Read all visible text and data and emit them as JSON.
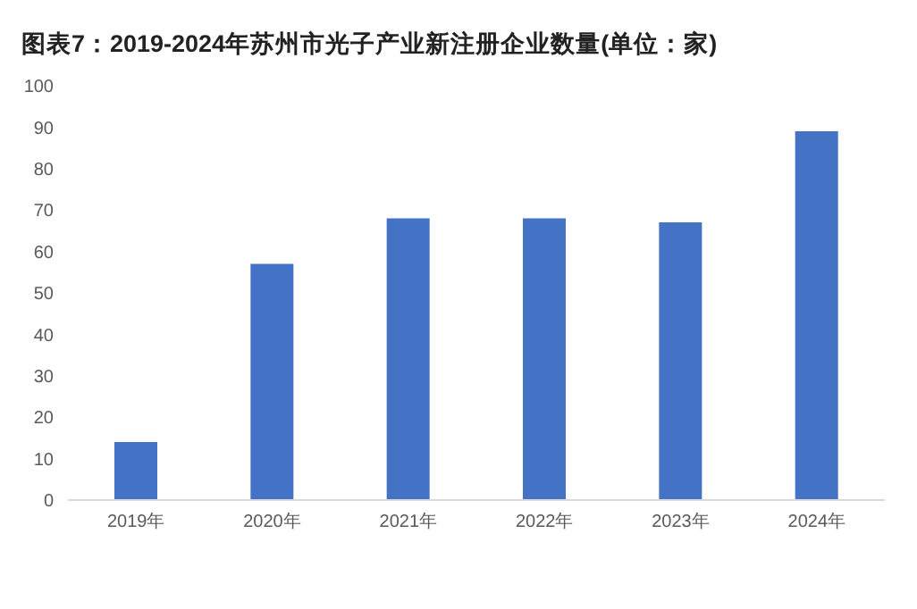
{
  "chart_data": {
    "type": "bar",
    "title": "图表7：2019-2024年苏州市光子产业新注册企业数量(单位：家)",
    "categories": [
      "2019年",
      "2020年",
      "2021年",
      "2022年",
      "2023年",
      "2024年"
    ],
    "values": [
      14,
      57,
      68,
      68,
      67,
      89
    ],
    "color": "#4472c4",
    "ylim": [
      0,
      100
    ],
    "yticks": [
      0,
      10,
      20,
      30,
      40,
      50,
      60,
      70,
      80,
      90,
      100
    ],
    "grid": false
  }
}
